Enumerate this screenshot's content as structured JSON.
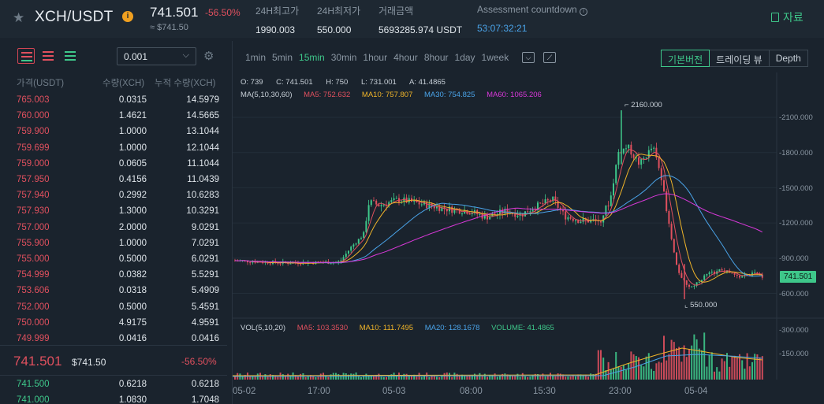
{
  "header": {
    "pair": "XCH/USDT",
    "info": "i",
    "last_price": "741.501",
    "change_pct": "-56.50%",
    "approx_value": "≈ $741.50",
    "high_label": "24H최고가",
    "high_value": "1990.003",
    "low_label": "24H최저가",
    "low_value": "550.000",
    "volume_label": "거래금액",
    "volume_value": "5693285.974 USDT",
    "countdown_label": "Assessment countdown",
    "countdown_value": "53:07:32:21",
    "docs_label": "자료"
  },
  "orderbook": {
    "precision": "0.001",
    "columns": {
      "price": "가격(USDT)",
      "qty": "수량(XCH)",
      "total": "누적 수량(XCH)"
    },
    "asks": [
      {
        "price": "765.003",
        "qty": "0.0315",
        "total": "14.5979"
      },
      {
        "price": "760.000",
        "qty": "1.4621",
        "total": "14.5665"
      },
      {
        "price": "759.900",
        "qty": "1.0000",
        "total": "13.1044"
      },
      {
        "price": "759.699",
        "qty": "1.0000",
        "total": "12.1044"
      },
      {
        "price": "759.000",
        "qty": "0.0605",
        "total": "11.1044"
      },
      {
        "price": "757.950",
        "qty": "0.4156",
        "total": "11.0439"
      },
      {
        "price": "757.940",
        "qty": "0.2992",
        "total": "10.6283"
      },
      {
        "price": "757.930",
        "qty": "1.3000",
        "total": "10.3291"
      },
      {
        "price": "757.000",
        "qty": "2.0000",
        "total": "9.0291"
      },
      {
        "price": "755.900",
        "qty": "1.0000",
        "total": "7.0291"
      },
      {
        "price": "755.000",
        "qty": "0.5000",
        "total": "6.0291"
      },
      {
        "price": "754.999",
        "qty": "0.0382",
        "total": "5.5291"
      },
      {
        "price": "753.606",
        "qty": "0.0318",
        "total": "5.4909"
      },
      {
        "price": "752.000",
        "qty": "0.5000",
        "total": "5.4591"
      },
      {
        "price": "750.000",
        "qty": "4.9175",
        "total": "4.9591"
      },
      {
        "price": "749.999",
        "qty": "0.0416",
        "total": "0.0416"
      }
    ],
    "mid_price": "741.501",
    "mid_approx": "$741.50",
    "mid_change": "-56.50%",
    "bids": [
      {
        "price": "741.500",
        "qty": "0.6218",
        "total": "0.6218"
      },
      {
        "price": "741.000",
        "qty": "1.0830",
        "total": "1.7048"
      }
    ]
  },
  "chart": {
    "intervals": [
      "1min",
      "5min",
      "15min",
      "30min",
      "1hour",
      "4hour",
      "8hour",
      "1day",
      "1week"
    ],
    "active_interval": "15min",
    "views": [
      "기본버전",
      "트레이딩 뷰",
      "Depth"
    ],
    "active_view": "기본버전",
    "ohlc": {
      "o": "O: 739",
      "c": "C: 741.501",
      "h": "H: 750",
      "l": "L: 731.001",
      "a": "A: 41.4865"
    },
    "ma_legend": {
      "label": "MA(5,10,30,60)",
      "ma5": "MA5: 752.632",
      "ma10": "MA10: 757.807",
      "ma30": "MA30: 754.825",
      "ma60": "MA60: 1065.206"
    },
    "vol_legend": {
      "label": "VOL(5,10,20)",
      "ma5": "MA5: 103.3530",
      "ma10": "MA10: 111.7495",
      "ma20": "MA20: 128.1678",
      "volume": "VOLUME: 41.4865"
    },
    "price_axis": [
      "2100.000",
      "1800.000",
      "1500.000",
      "1200.000",
      "900.000",
      "600.000"
    ],
    "volume_axis": [
      "300.000",
      "150.000"
    ],
    "time_axis": [
      "05-02",
      "17:00",
      "05-03",
      "08:00",
      "15:30",
      "23:00",
      "05-04"
    ],
    "high_marker": "2160.000",
    "low_marker": "550.000",
    "current_tag": "741.501",
    "colors": {
      "up": "#3ec78a",
      "down": "#e0505e",
      "ma5": "#e0505e",
      "ma10": "#f0b429",
      "ma30": "#4aa3e8",
      "ma60": "#d838d8"
    }
  }
}
